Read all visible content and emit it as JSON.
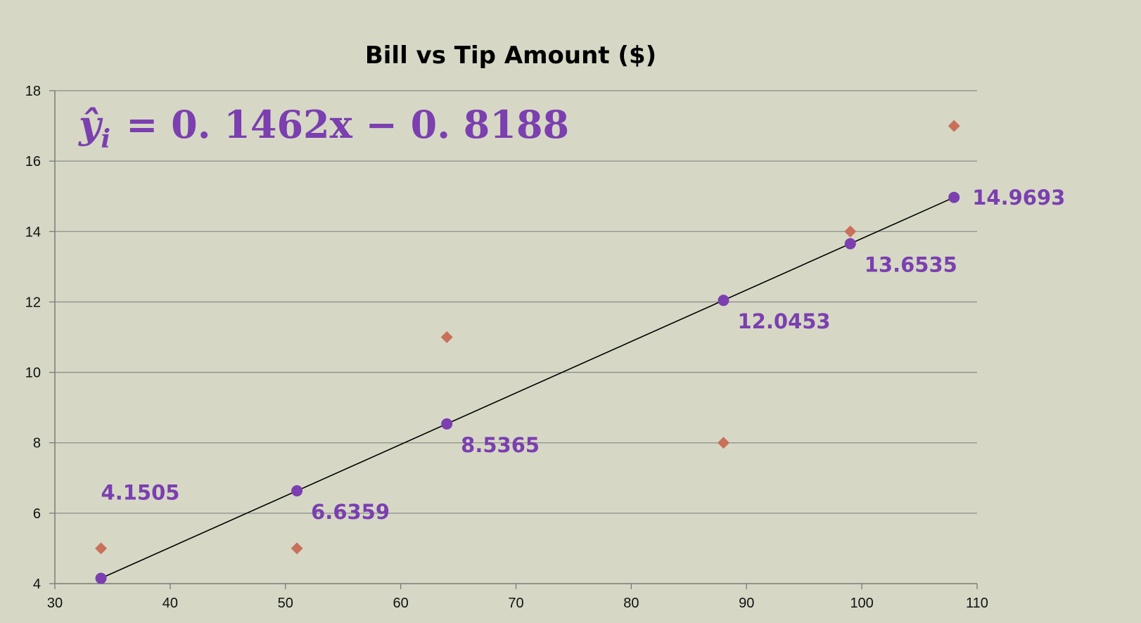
{
  "chart_data": {
    "type": "scatter",
    "title": "Bill vs Tip Amount ($)",
    "xlabel": "",
    "ylabel": "",
    "xlim": [
      30,
      110
    ],
    "ylim": [
      4,
      18
    ],
    "x_ticks": [
      30,
      40,
      50,
      60,
      70,
      80,
      90,
      100,
      110
    ],
    "y_ticks": [
      4,
      6,
      8,
      10,
      12,
      14,
      16,
      18
    ],
    "grid": true,
    "legend": "none",
    "equation": {
      "lhs": "ŷ",
      "subscript": "i",
      "rhs": "= 0. 1462x − 0. 8188"
    },
    "regression_line": {
      "slope": 0.1462,
      "intercept": -0.8188,
      "x_range": [
        34,
        108
      ],
      "color": "#000000"
    },
    "series": [
      {
        "marker": "diamond",
        "color": "#c9705a",
        "points": [
          {
            "x": 34,
            "y": 5
          },
          {
            "x": 51,
            "y": 5
          },
          {
            "x": 64,
            "y": 11
          },
          {
            "x": 88,
            "y": 8
          },
          {
            "x": 99,
            "y": 14
          },
          {
            "x": 108,
            "y": 17
          }
        ]
      },
      {
        "marker": "circle",
        "color": "#7b3fb0",
        "points": [
          {
            "x": 34,
            "y": 4.1505,
            "label": "4.1505",
            "label_pos": "above-right"
          },
          {
            "x": 51,
            "y": 6.6359,
            "label": "6.6359",
            "label_pos": "below-right"
          },
          {
            "x": 64,
            "y": 8.5365,
            "label": "8.5365",
            "label_pos": "below-right"
          },
          {
            "x": 88,
            "y": 12.0453,
            "label": "12.0453",
            "label_pos": "below-right"
          },
          {
            "x": 99,
            "y": 13.6535,
            "label": "13.6535",
            "label_pos": "below-right"
          },
          {
            "x": 108,
            "y": 14.9693,
            "label": "14.9693",
            "label_pos": "right"
          }
        ]
      }
    ],
    "colors": {
      "background": "#d6d8c5",
      "gridline": "#8c8c8c",
      "axis": "#7a7a7a",
      "label": "#7b3fb0"
    }
  }
}
